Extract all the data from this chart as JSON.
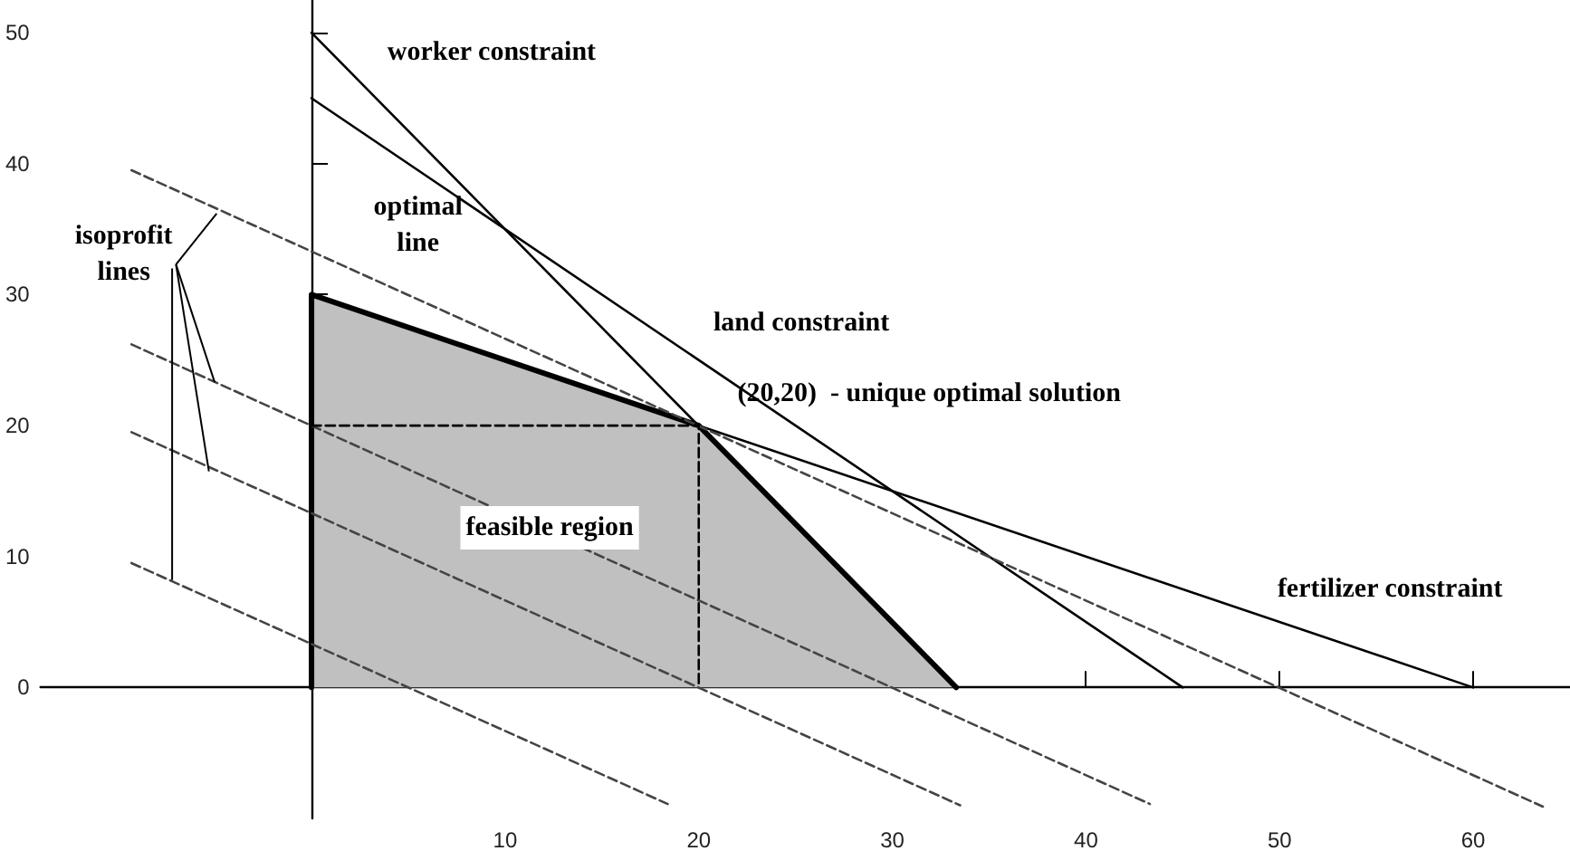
{
  "chart_data": {
    "type": "line",
    "xlim": [
      -14,
      65
    ],
    "ylim": [
      -10,
      52.5
    ],
    "xticks": [
      10,
      20,
      30,
      40,
      50,
      60
    ],
    "yticks": [
      0,
      10,
      20,
      30,
      40,
      50
    ],
    "marker": "none",
    "series": [
      {
        "type": "area",
        "color": "#c0c0c0",
        "x": [
          0,
          0,
          20,
          33.3
        ],
        "values": [
          0,
          30,
          20,
          0
        ]
      },
      {
        "color": "#000000",
        "x": [
          0,
          33.3
        ],
        "values": [
          50,
          0
        ]
      },
      {
        "color": "#000000",
        "x": [
          0,
          45
        ],
        "values": [
          45,
          0
        ]
      },
      {
        "color": "#000000",
        "x": [
          0,
          60
        ],
        "values": [
          30,
          0
        ]
      },
      {
        "color": "#444444",
        "line_style": "dashed",
        "x": [
          -9.3,
          18.4
        ],
        "values": [
          9.5,
          -8.9
        ]
      },
      {
        "color": "#444444",
        "line_style": "dashed",
        "x": [
          -9.3,
          33.5
        ],
        "values": [
          19.5,
          -9
        ]
      },
      {
        "color": "#444444",
        "line_style": "dashed",
        "x": [
          -9.3,
          43.3
        ],
        "values": [
          26.2,
          -8.9
        ]
      },
      {
        "color": "#444444",
        "line_style": "dashed",
        "x": [
          -9.3,
          63.6
        ],
        "values": [
          39.5,
          -9.1
        ]
      },
      {
        "color": "#000000",
        "line_style": "dashed",
        "x": [
          0,
          20,
          20
        ],
        "values": [
          20,
          20,
          0
        ]
      }
    ],
    "annotations": [
      "worker constraint",
      "land constraint",
      "(20,20)  - unique optimal solution",
      "fertilizer constraint",
      "optimal\nline",
      "feasible region",
      {
        "text": "isoprofit\nlines",
        "x": -5,
        "y": 23.3
      }
    ]
  }
}
